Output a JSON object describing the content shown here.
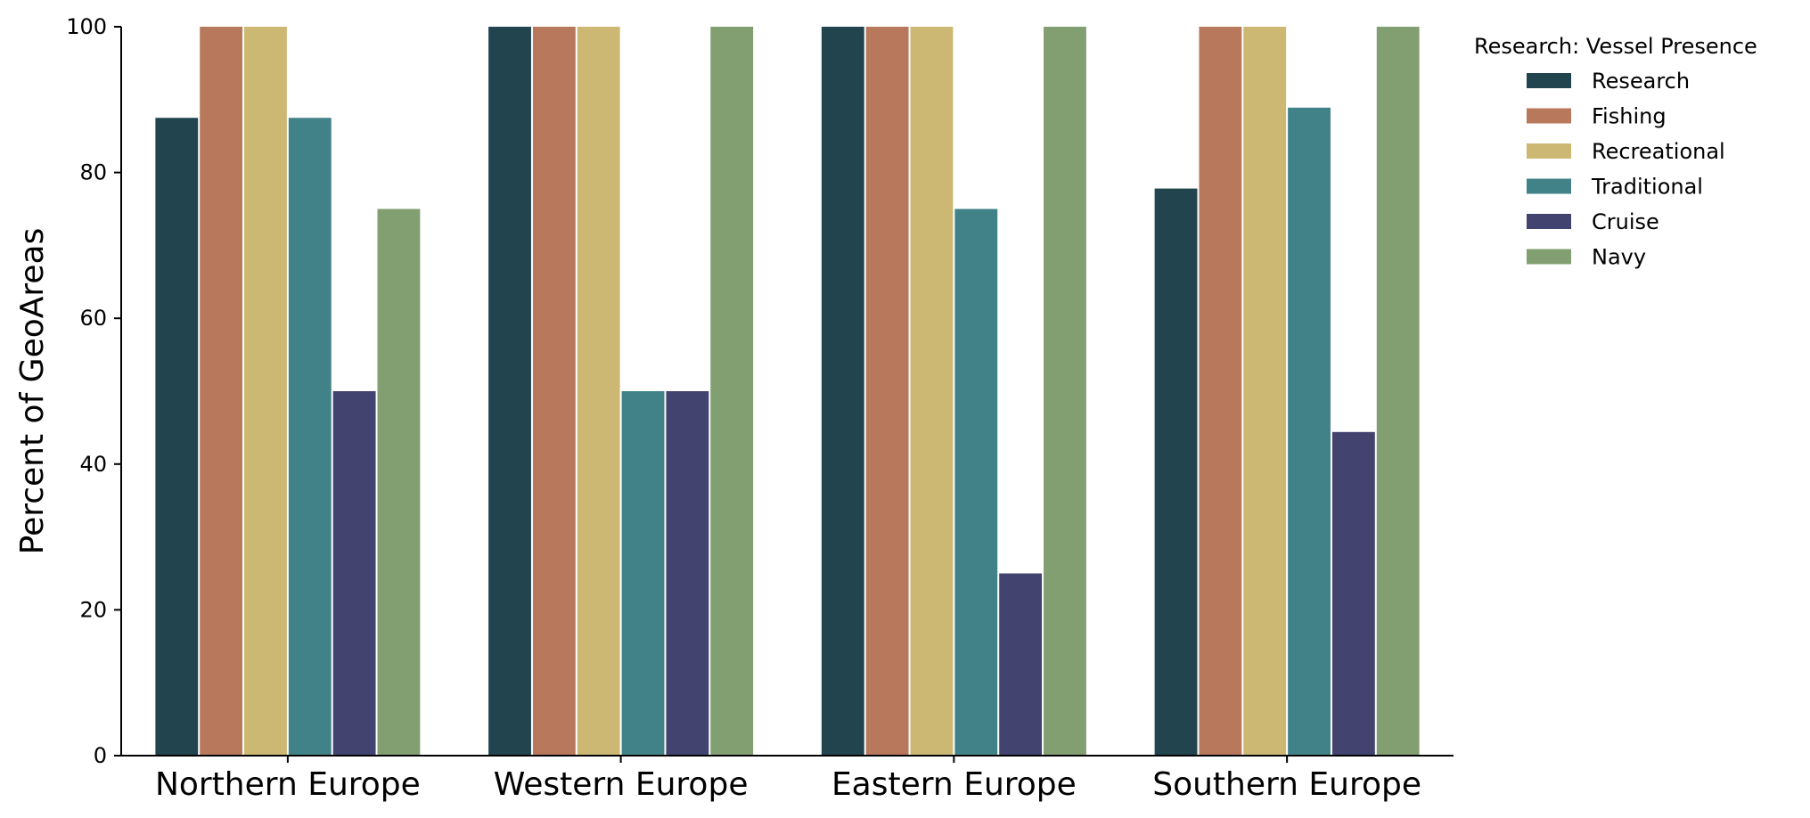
{
  "chart_data": {
    "type": "bar",
    "title": "",
    "xlabel": "",
    "ylabel": "Percent of GeoAreas",
    "ylim": [
      0,
      100
    ],
    "yticks": [
      "0",
      "20",
      "40",
      "60",
      "80",
      "100"
    ],
    "grid": false,
    "legend_title": "Research: Vessel Presence",
    "legend_position": "top-right outside",
    "categories": [
      "Northern Europe",
      "Western Europe",
      "Eastern Europe",
      "Southern Europe"
    ],
    "series": [
      {
        "name": "Research",
        "color": "#21444f",
        "values": [
          87.5,
          100,
          100,
          77.8
        ]
      },
      {
        "name": "Fishing",
        "color": "#b8785c",
        "values": [
          100,
          100,
          100,
          100
        ]
      },
      {
        "name": "Recreational",
        "color": "#ccb872",
        "values": [
          100,
          100,
          100,
          100
        ]
      },
      {
        "name": "Traditional",
        "color": "#418289",
        "values": [
          87.5,
          50,
          75,
          88.9
        ]
      },
      {
        "name": "Cruise",
        "color": "#434370",
        "values": [
          50,
          50,
          25,
          44.4
        ]
      },
      {
        "name": "Navy",
        "color": "#829f71",
        "values": [
          75,
          100,
          100,
          100
        ]
      }
    ]
  }
}
